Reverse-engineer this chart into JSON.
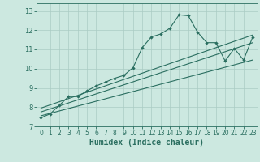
{
  "title": "",
  "xlabel": "Humidex (Indice chaleur)",
  "ylabel": "",
  "bg_color": "#cce8e0",
  "grid_color": "#aaccc4",
  "line_color": "#2a6e60",
  "xlim": [
    -0.5,
    23.5
  ],
  "ylim": [
    7.0,
    13.4
  ],
  "xticks": [
    0,
    1,
    2,
    3,
    4,
    5,
    6,
    7,
    8,
    9,
    10,
    11,
    12,
    13,
    14,
    15,
    16,
    17,
    18,
    19,
    20,
    21,
    22,
    23
  ],
  "yticks": [
    7,
    8,
    9,
    10,
    11,
    12,
    13
  ],
  "series1_x": [
    0,
    1,
    2,
    3,
    4,
    5,
    6,
    7,
    8,
    9,
    10,
    11,
    12,
    13,
    14,
    15,
    16,
    17,
    18,
    19,
    20,
    21,
    22,
    23
  ],
  "series1_y": [
    7.45,
    7.65,
    8.1,
    8.55,
    8.55,
    8.85,
    9.1,
    9.3,
    9.5,
    9.65,
    10.05,
    11.1,
    11.65,
    11.8,
    12.1,
    12.8,
    12.75,
    11.9,
    11.35,
    11.35,
    10.4,
    11.05,
    10.45,
    11.65
  ],
  "line2_x": [
    0,
    23
  ],
  "line2_y": [
    7.55,
    10.45
  ],
  "line3_x": [
    0,
    23
  ],
  "line3_y": [
    7.75,
    11.35
  ],
  "line4_x": [
    0,
    23
  ],
  "line4_y": [
    7.95,
    11.75
  ]
}
